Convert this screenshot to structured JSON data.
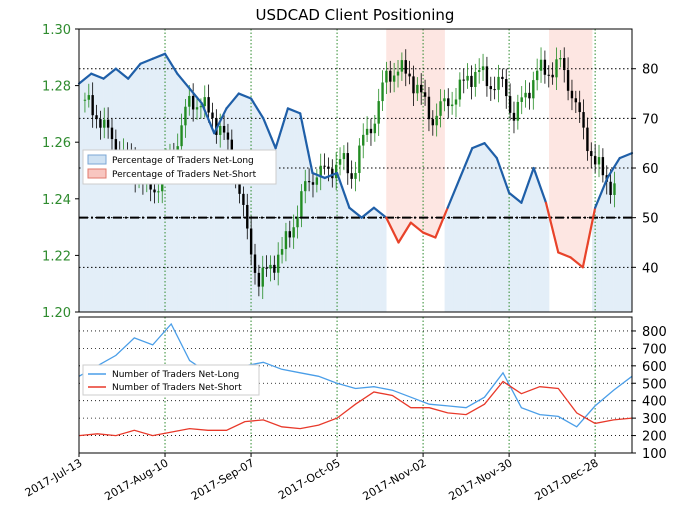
{
  "chart_data": [
    {
      "type": "line",
      "title": "USDCAD Client Positioning",
      "xlabel": "",
      "ylabel": "",
      "x_tick_labels": [
        "2017-Jul-13",
        "2017-Aug-10",
        "2017-Sep-07",
        "2017-Oct-05",
        "2017-Nov-02",
        "2017-Nov-30",
        "2017-Dec-28"
      ],
      "x_range": [
        "2017-07-13",
        "2018-01-09"
      ],
      "y_left": {
        "label": "",
        "ylim": [
          1.2,
          1.3
        ],
        "ticks": [
          "1.20",
          "1.22",
          "1.24",
          "1.26",
          "1.28",
          "1.30"
        ],
        "tick_color": "#2e8b2e"
      },
      "y_right": {
        "label": "",
        "ylim": [
          31,
          88
        ],
        "ticks": [
          "40",
          "50",
          "60",
          "70",
          "80"
        ]
      },
      "grid": true,
      "reference_line": {
        "axis": "right",
        "value": 50,
        "style": "dash-dot"
      },
      "legend": {
        "placement": "middle-left",
        "entries": [
          "Percentage of Traders Net-Long",
          "Percentage of Traders Net-Short"
        ]
      },
      "background_shading": "blue below 50% when majority net-long, red above when majority net-short",
      "series": [
        {
          "name": "Percentage of Traders Net-Long",
          "axis": "right",
          "color_long": "#1f5fa8",
          "color_short": "#e8432a",
          "x": [
            "2017-07-13",
            "2017-07-17",
            "2017-07-21",
            "2017-07-25",
            "2017-07-29",
            "2017-08-02",
            "2017-08-06",
            "2017-08-10",
            "2017-08-14",
            "2017-08-18",
            "2017-08-22",
            "2017-08-26",
            "2017-08-30",
            "2017-09-03",
            "2017-09-07",
            "2017-09-11",
            "2017-09-15",
            "2017-09-19",
            "2017-09-23",
            "2017-09-27",
            "2017-10-01",
            "2017-10-05",
            "2017-10-09",
            "2017-10-13",
            "2017-10-17",
            "2017-10-21",
            "2017-10-25",
            "2017-10-29",
            "2017-11-02",
            "2017-11-06",
            "2017-11-10",
            "2017-11-14",
            "2017-11-18",
            "2017-11-22",
            "2017-11-26",
            "2017-11-30",
            "2017-12-04",
            "2017-12-08",
            "2017-12-12",
            "2017-12-16",
            "2017-12-20",
            "2017-12-24",
            "2017-12-28",
            "2018-01-01",
            "2018-01-05",
            "2018-01-09"
          ],
          "values": [
            77,
            79,
            78,
            80,
            78,
            81,
            82,
            83,
            79,
            76,
            73,
            67,
            72,
            75,
            74,
            70,
            64,
            72,
            71,
            59,
            58,
            59,
            52,
            50,
            52,
            50,
            45,
            49,
            47,
            46,
            52,
            58,
            64,
            65,
            62,
            55,
            53,
            60,
            53,
            43,
            42,
            40,
            52,
            58,
            62,
            63
          ]
        }
      ],
      "candles_daily_close_approx": [
        1.275,
        1.27,
        1.262,
        1.258,
        1.251,
        1.247,
        1.243,
        1.251,
        1.262,
        1.273,
        1.275,
        1.268,
        1.262,
        1.251,
        1.226,
        1.212,
        1.215,
        1.222,
        1.232,
        1.243,
        1.251,
        1.248,
        1.255,
        1.248,
        1.26,
        1.27,
        1.282,
        1.287,
        1.283,
        1.276,
        1.269,
        1.272,
        1.278,
        1.282,
        1.285,
        1.281,
        1.279,
        1.271,
        1.275,
        1.286,
        1.285,
        1.287,
        1.279,
        1.262,
        1.254,
        1.246,
        1.242
      ]
    },
    {
      "type": "line",
      "title": "",
      "xlabel": "",
      "ylabel": "",
      "y_right": {
        "ylim": [
          100,
          880
        ],
        "ticks": [
          "100",
          "200",
          "300",
          "400",
          "500",
          "600",
          "700",
          "800"
        ]
      },
      "grid": true,
      "legend": {
        "placement": "middle-left",
        "entries": [
          "Number of Traders Net-Long",
          "Number of Traders Net-Short"
        ]
      },
      "series": [
        {
          "name": "Number of Traders Net-Long",
          "color": "#4a9ee8",
          "x": [
            "2017-07-13",
            "2017-07-19",
            "2017-07-25",
            "2017-07-31",
            "2017-08-06",
            "2017-08-12",
            "2017-08-18",
            "2017-08-24",
            "2017-08-30",
            "2017-09-05",
            "2017-09-11",
            "2017-09-17",
            "2017-09-23",
            "2017-09-29",
            "2017-10-05",
            "2017-10-11",
            "2017-10-17",
            "2017-10-23",
            "2017-10-29",
            "2017-11-04",
            "2017-11-10",
            "2017-11-16",
            "2017-11-22",
            "2017-11-28",
            "2017-12-04",
            "2017-12-10",
            "2017-12-16",
            "2017-12-22",
            "2017-12-28",
            "2018-01-03",
            "2018-01-09"
          ],
          "values": [
            540,
            600,
            660,
            760,
            720,
            840,
            630,
            560,
            540,
            600,
            620,
            580,
            560,
            540,
            500,
            470,
            480,
            460,
            420,
            380,
            370,
            360,
            420,
            560,
            360,
            320,
            310,
            250,
            370,
            460,
            540
          ]
        },
        {
          "name": "Number of Traders Net-Short",
          "color": "#e8392a",
          "x": [
            "2017-07-13",
            "2017-07-19",
            "2017-07-25",
            "2017-07-31",
            "2017-08-06",
            "2017-08-12",
            "2017-08-18",
            "2017-08-24",
            "2017-08-30",
            "2017-09-05",
            "2017-09-11",
            "2017-09-17",
            "2017-09-23",
            "2017-09-29",
            "2017-10-05",
            "2017-10-11",
            "2017-10-17",
            "2017-10-23",
            "2017-10-29",
            "2017-11-04",
            "2017-11-10",
            "2017-11-16",
            "2017-11-22",
            "2017-11-28",
            "2017-12-04",
            "2017-12-10",
            "2017-12-16",
            "2017-12-22",
            "2017-12-28",
            "2018-01-03",
            "2018-01-09"
          ],
          "values": [
            200,
            210,
            200,
            230,
            200,
            220,
            240,
            230,
            230,
            280,
            290,
            250,
            240,
            260,
            300,
            380,
            450,
            430,
            360,
            360,
            330,
            320,
            380,
            510,
            440,
            480,
            470,
            330,
            270,
            290,
            300
          ]
        }
      ]
    }
  ]
}
